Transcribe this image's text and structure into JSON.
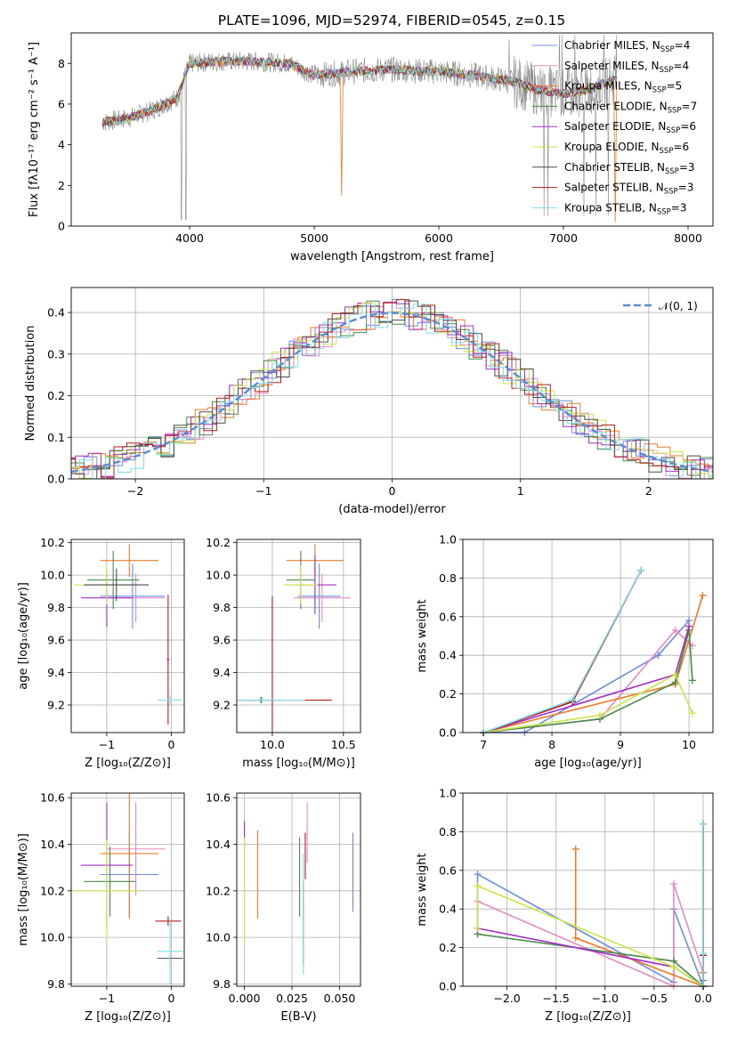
{
  "title": "PLATE=1096, MJD=52974, FIBERID=0545, z=0.15",
  "colors": [
    "#6b8de0",
    "#e68ac6",
    "#ec7a28",
    "#4a8a4a",
    "#a42bc8",
    "#c9e646",
    "#4a4a4a",
    "#b81b1b",
    "#7fdfe8"
  ],
  "chart_data": [
    {
      "type": "line",
      "title": "PLATE=1096, MJD=52974, FIBERID=0545, z=0.15",
      "xlabel": "wavelength [Angstrom, rest frame]",
      "ylabel": "Flux [fλ10⁻¹⁷ erg cm⁻² s⁻¹ A⁻¹]",
      "xlim": [
        3050,
        8200
      ],
      "ylim": [
        0,
        9.5
      ],
      "xticks": [
        "4000",
        "5000",
        "6000",
        "7000",
        "8000"
      ],
      "yticks": [
        "0",
        "2",
        "4",
        "6",
        "8"
      ],
      "grid": false,
      "legend_position": "right",
      "series": [
        {
          "name": "Chabrier MILES, N_SSP=4"
        },
        {
          "name": "Salpeter MILES, N_SSP=4"
        },
        {
          "name": "Kroupa MILES, N_SSP=5"
        },
        {
          "name": "Chabrier ELODIE, N_SSP=7"
        },
        {
          "name": "Salpeter ELODIE, N_SSP=6"
        },
        {
          "name": "Kroupa ELODIE, N_SSP=6"
        },
        {
          "name": "Chabrier STELIB, N_SSP=3"
        },
        {
          "name": "Salpeter STELIB, N_SSP=3"
        },
        {
          "name": "Kroupa STELIB, N_SSP=3"
        }
      ],
      "continuum": {
        "x": [
          3300,
          3500,
          3700,
          3900,
          4000,
          4200,
          4500,
          4800,
          5000,
          5300,
          5600,
          6000,
          6300,
          6600,
          6800,
          7000,
          7200,
          7400
        ],
        "y": [
          5.1,
          5.3,
          5.7,
          6.3,
          8.0,
          8.1,
          8.1,
          8.0,
          7.4,
          7.6,
          7.7,
          7.6,
          7.4,
          7.1,
          6.7,
          6.5,
          6.7,
          7.2
        ]
      }
    },
    {
      "type": "bar",
      "xlabel": "(data-model)/error",
      "ylabel": "Normed distribution",
      "xlim": [
        -2.5,
        2.5
      ],
      "ylim": [
        0,
        0.46
      ],
      "xticks": [
        "−2",
        "−1",
        "0",
        "1",
        "2"
      ],
      "yticks": [
        "0.0",
        "0.1",
        "0.2",
        "0.3",
        "0.4"
      ],
      "grid": true,
      "legend_position": "top-right",
      "reference_curve": {
        "name": "𝒩(0, 1)",
        "mean": 0,
        "sigma": 1
      }
    },
    {
      "type": "scatter",
      "xlabel": "Z [log₁₀(Z/Z⊙)]",
      "ylabel": "age  [log₁₀(age/yr)]",
      "xlim": [
        -1.55,
        0.2
      ],
      "ylim": [
        9.03,
        10.22
      ],
      "xticks": [
        "−1",
        "0"
      ],
      "yticks": [
        "9.2",
        "9.4",
        "9.6",
        "9.8",
        "10.0",
        "10.2"
      ],
      "grid": true,
      "points": [
        {
          "x": -0.6,
          "y": 9.87,
          "xerr": 0.5,
          "yerr": 0.2,
          "color": "#6b8de0"
        },
        {
          "x": -0.55,
          "y": 9.86,
          "xerr": 0.45,
          "yerr": 0.15,
          "color": "#e68ac6"
        },
        {
          "x": -0.65,
          "y": 10.09,
          "xerr": 0.45,
          "yerr": 0.1,
          "color": "#ec7a28"
        },
        {
          "x": -0.9,
          "y": 9.97,
          "xerr": 0.4,
          "yerr": 0.18,
          "color": "#4a8a4a"
        },
        {
          "x": -1.0,
          "y": 9.86,
          "xerr": 0.4,
          "yerr": 0.18,
          "color": "#a42bc8"
        },
        {
          "x": -1.0,
          "y": 9.94,
          "xerr": 0.5,
          "yerr": 0.12,
          "color": "#c9e646"
        },
        {
          "x": -0.85,
          "y": 9.94,
          "xerr": 0.5,
          "yerr": 0.1,
          "color": "#4a4a4a"
        },
        {
          "x": -0.05,
          "y": 9.48,
          "xerr": 0.02,
          "yerr": 0.4,
          "color": "#b81b1b"
        },
        {
          "x": -0.02,
          "y": 9.23,
          "xerr": 0.18,
          "yerr": 0.03,
          "color": "#7fdfe8"
        }
      ]
    },
    {
      "type": "scatter",
      "xlabel": "mass [log₁₀(M/M⊙)]",
      "ylabel": "",
      "xlim": [
        9.75,
        10.62
      ],
      "ylim": [
        9.03,
        10.22
      ],
      "xticks": [
        "10.0",
        "10.5"
      ],
      "yticks": [
        "9.2",
        "9.4",
        "9.6",
        "9.8",
        "10.0",
        "10.2"
      ],
      "grid": true,
      "points": [
        {
          "x": 10.33,
          "y": 9.87,
          "xerr": 0.15,
          "yerr": 0.2,
          "color": "#6b8de0"
        },
        {
          "x": 10.35,
          "y": 9.86,
          "xerr": 0.2,
          "yerr": 0.15,
          "color": "#e68ac6"
        },
        {
          "x": 10.3,
          "y": 10.09,
          "xerr": 0.2,
          "yerr": 0.1,
          "color": "#ec7a28"
        },
        {
          "x": 10.2,
          "y": 9.97,
          "xerr": 0.1,
          "yerr": 0.18,
          "color": "#4a8a4a"
        },
        {
          "x": 10.3,
          "y": 9.94,
          "xerr": 0.15,
          "yerr": 0.18,
          "color": "#a42bc8"
        },
        {
          "x": 10.2,
          "y": 9.94,
          "xerr": 0.12,
          "yerr": 0.12,
          "color": "#c9e646"
        },
        {
          "x": 9.92,
          "y": 9.23,
          "xerr": 0.12,
          "yerr": 0.02,
          "color": "#4a4a4a"
        },
        {
          "x": 10.0,
          "y": 9.23,
          "xerr": 0.42,
          "yerr": 0.64,
          "color": "#b81b1b"
        },
        {
          "x": 9.93,
          "y": 9.23,
          "xerr": 0.3,
          "yerr": 0.02,
          "color": "#7fdfe8"
        }
      ]
    },
    {
      "type": "line",
      "xlabel": "age  [log₁₀(age/yr)]",
      "ylabel": "mass weight",
      "xlim": [
        6.7,
        10.35
      ],
      "ylim": [
        0,
        1
      ],
      "xticks": [
        "7",
        "8",
        "9",
        "10"
      ],
      "yticks": [
        "0.0",
        "0.2",
        "0.4",
        "0.6",
        "0.8",
        "1.0"
      ],
      "grid": true,
      "series": [
        {
          "x": [
            7.0,
            7.6,
            9.55,
            10.0
          ],
          "y": [
            0.0,
            0.0,
            0.4,
            0.58
          ],
          "color": "#6b8de0"
        },
        {
          "x": [
            7.0,
            8.7,
            9.8,
            10.05
          ],
          "y": [
            0.0,
            0.07,
            0.53,
            0.45
          ],
          "color": "#e68ac6"
        },
        {
          "x": [
            7.0,
            9.8,
            10.2
          ],
          "y": [
            0.0,
            0.25,
            0.71
          ],
          "color": "#ec7a28"
        },
        {
          "x": [
            7.0,
            8.7,
            9.8,
            10.0,
            10.05
          ],
          "y": [
            0.0,
            0.07,
            0.26,
            0.53,
            0.27
          ],
          "color": "#4a8a4a"
        },
        {
          "x": [
            7.0,
            9.8,
            10.0
          ],
          "y": [
            0.0,
            0.3,
            0.55
          ],
          "color": "#a42bc8"
        },
        {
          "x": [
            7.0,
            8.7,
            9.8,
            10.05
          ],
          "y": [
            0.0,
            0.09,
            0.3,
            0.1
          ],
          "color": "#c9e646"
        },
        {
          "x": [
            7.0,
            8.3,
            9.3
          ],
          "y": [
            0.0,
            0.16,
            0.84
          ],
          "color": "#4a4a4a"
        },
        {
          "x": [
            7.0,
            8.3,
            9.3
          ],
          "y": [
            0.0,
            0.16,
            0.84
          ],
          "color": "#b81b1b"
        },
        {
          "x": [
            7.0,
            8.3,
            9.3
          ],
          "y": [
            0.0,
            0.17,
            0.84
          ],
          "color": "#7fdfe8"
        }
      ]
    },
    {
      "type": "scatter",
      "xlabel": "Z [log₁₀(Z/Z⊙)]",
      "ylabel": "mass [log₁₀(M/M⊙)]",
      "xlim": [
        -1.55,
        0.2
      ],
      "ylim": [
        9.79,
        10.62
      ],
      "xticks": [
        "−1",
        "0"
      ],
      "yticks": [
        "9.8",
        "10.0",
        "10.2",
        "10.4",
        "10.6"
      ],
      "grid": true,
      "points": [
        {
          "x": -0.65,
          "y": 10.27,
          "xerr": 0.45,
          "yerr": 0.18,
          "color": "#6b8de0"
        },
        {
          "x": -0.55,
          "y": 10.38,
          "xerr": 0.45,
          "yerr": 0.2,
          "color": "#e68ac6"
        },
        {
          "x": -0.65,
          "y": 10.36,
          "xerr": 0.45,
          "yerr": 0.28,
          "color": "#ec7a28"
        },
        {
          "x": -0.95,
          "y": 10.24,
          "xerr": 0.4,
          "yerr": 0.15,
          "color": "#4a8a4a"
        },
        {
          "x": -1.0,
          "y": 10.31,
          "xerr": 0.4,
          "yerr": 0.27,
          "color": "#a42bc8"
        },
        {
          "x": -1.0,
          "y": 10.2,
          "xerr": 0.5,
          "yerr": 0.22,
          "color": "#c9e646"
        },
        {
          "x": -0.02,
          "y": 9.91,
          "xerr": 0.2,
          "yerr": 0.02,
          "color": "#4a4a4a"
        },
        {
          "x": -0.05,
          "y": 10.07,
          "xerr": 0.2,
          "yerr": 0.02,
          "color": "#b81b1b"
        },
        {
          "x": -0.02,
          "y": 9.94,
          "xerr": 0.2,
          "yerr": 0.14,
          "color": "#7fdfe8"
        }
      ]
    },
    {
      "type": "scatter",
      "xlabel": "E(B-V)",
      "ylabel": "",
      "xlim": [
        -0.004,
        0.061
      ],
      "ylim": [
        9.79,
        10.62
      ],
      "xticks": [
        "0.000",
        "0.025",
        "0.050"
      ],
      "yticks": [
        "9.8",
        "10.0",
        "10.2",
        "10.4",
        "10.6"
      ],
      "grid": true,
      "points": [
        {
          "x": 0.057,
          "y": 10.28,
          "xerr": 0,
          "yerr": 0.17,
          "color": "#6b8de0"
        },
        {
          "x": 0.033,
          "y": 10.45,
          "xerr": 0,
          "yerr": 0.13,
          "color": "#e68ac6"
        },
        {
          "x": 0.007,
          "y": 10.27,
          "xerr": 0,
          "yerr": 0.19,
          "color": "#ec7a28"
        },
        {
          "x": 0.029,
          "y": 10.26,
          "xerr": 0,
          "yerr": 0.17,
          "color": "#4a8a4a"
        },
        {
          "x": 0.0,
          "y": 10.36,
          "xerr": 0,
          "yerr": 0.14,
          "color": "#a42bc8"
        },
        {
          "x": 0.0,
          "y": 10.2,
          "xerr": 0,
          "yerr": 0.23,
          "color": "#c9e646"
        },
        {
          "x": 0.031,
          "y": 10.06,
          "xerr": 0,
          "yerr": 0.18,
          "color": "#4a4a4a"
        },
        {
          "x": 0.032,
          "y": 10.35,
          "xerr": 0,
          "yerr": 0.1,
          "color": "#b81b1b"
        },
        {
          "x": 0.031,
          "y": 10.1,
          "xerr": 0,
          "yerr": 0.26,
          "color": "#7fdfe8"
        }
      ]
    },
    {
      "type": "line",
      "xlabel": "Z [log₁₀(Z/Z⊙)]",
      "ylabel": "mass weight",
      "xlim": [
        -2.45,
        0.1
      ],
      "ylim": [
        0,
        1
      ],
      "xticks": [
        "−2.0",
        "−1.5",
        "−1.0",
        "−0.5",
        "0.0"
      ],
      "yticks": [
        "0.0",
        "0.2",
        "0.4",
        "0.6",
        "0.8",
        "1.0"
      ],
      "grid": true,
      "series": [
        {
          "x": [
            -2.3,
            -2.3,
            -0.3,
            -0.3,
            0.0
          ],
          "y": [
            0.27,
            0.58,
            0.02,
            0.4,
            0.0
          ],
          "color": "#6b8de0"
        },
        {
          "x": [
            -2.3,
            -2.3,
            -0.3,
            -0.3,
            0.0
          ],
          "y": [
            0.27,
            0.44,
            0.0,
            0.53,
            0.07
          ],
          "color": "#e68ac6"
        },
        {
          "x": [
            -1.3,
            -1.3,
            0.0,
            0.0
          ],
          "y": [
            0.71,
            0.25,
            0.0,
            0.07
          ],
          "color": "#ec7a28"
        },
        {
          "x": [
            -2.3,
            -0.3,
            0.0,
            0.0
          ],
          "y": [
            0.27,
            0.13,
            0.0,
            0.03
          ],
          "color": "#4a8a4a"
        },
        {
          "x": [
            -2.3,
            -0.3,
            0.0
          ],
          "y": [
            0.3,
            0.1,
            0.0
          ],
          "color": "#a42bc8"
        },
        {
          "x": [
            -2.3,
            -2.3,
            -0.3,
            0.0
          ],
          "y": [
            0.3,
            0.52,
            0.1,
            0.0
          ],
          "color": "#c9e646"
        },
        {
          "x": [
            0.0,
            0.0,
            0.0
          ],
          "y": [
            0.84,
            0.16,
            0.0
          ],
          "color": "#4a4a4a"
        },
        {
          "x": [
            0.0,
            0.0,
            0.0
          ],
          "y": [
            0.84,
            0.16,
            0.0
          ],
          "color": "#b81b1b"
        },
        {
          "x": [
            0.0,
            0.0,
            0.0
          ],
          "y": [
            0.84,
            0.17,
            0.0
          ],
          "color": "#7fdfe8"
        }
      ]
    }
  ]
}
